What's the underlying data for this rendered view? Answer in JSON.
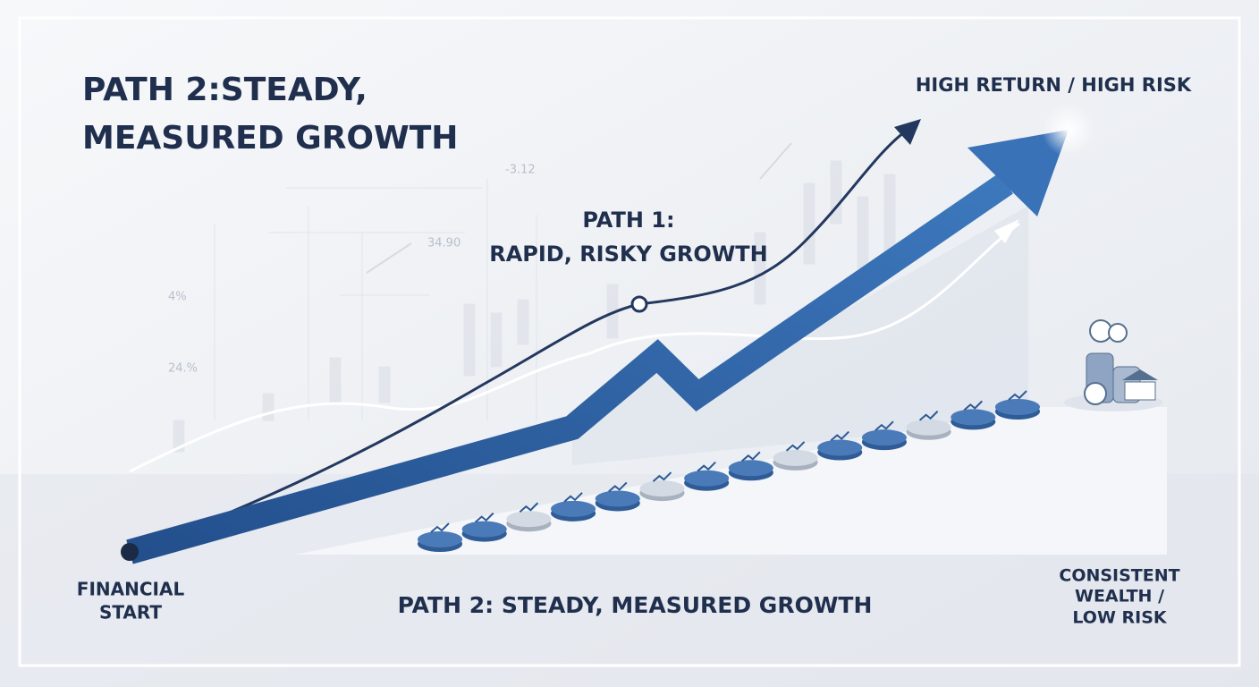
{
  "title": [
    "PATH 2:STEADY,",
    "MEASURED GROWTH"
  ],
  "high_label": "HIGH RETURN / HIGH RISK",
  "path1_label": [
    "PATH 1:",
    "RAPID, RISKY GROWTH"
  ],
  "start_label": [
    "FINANCIAL",
    "START"
  ],
  "end_label": [
    "CONSISTENT",
    "WEALTH /",
    "LOW RISK"
  ],
  "path2_label": "PATH 2: STEADY, MEASURED GROWTH",
  "background_figures": [
    "-3.12",
    "34.90",
    "4%",
    "24.%"
  ]
}
